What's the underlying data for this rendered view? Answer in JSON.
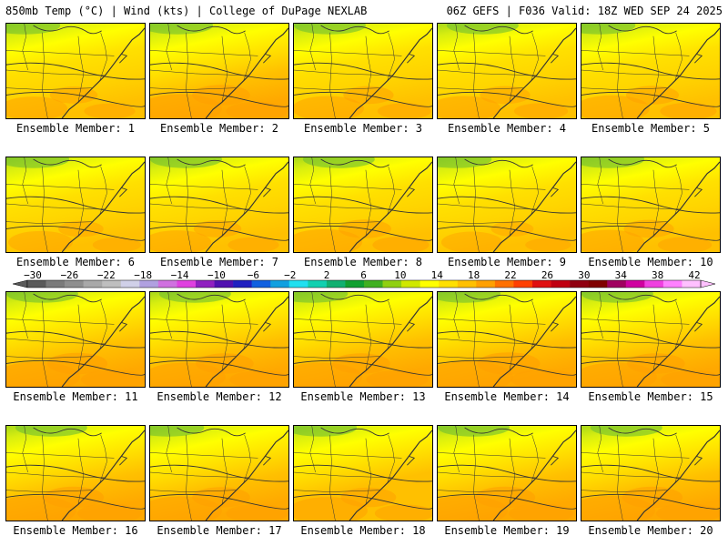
{
  "header": {
    "left": "850mb Temp (°C) | Wind (kts) | College of DuPage NEXLAB",
    "right": "06Z GEFS | F036 Valid: 18Z WED SEP 24 2025"
  },
  "panels": [
    {
      "label": "Ensemble Member: 1",
      "warmth": 0.35
    },
    {
      "label": "Ensemble Member: 2",
      "warmth": 0.55
    },
    {
      "label": "Ensemble Member: 3",
      "warmth": 0.4
    },
    {
      "label": "Ensemble Member: 4",
      "warmth": 0.4
    },
    {
      "label": "Ensemble Member: 5",
      "warmth": 0.45
    },
    {
      "label": "Ensemble Member: 6",
      "warmth": 0.3
    },
    {
      "label": "Ensemble Member: 7",
      "warmth": 0.35
    },
    {
      "label": "Ensemble Member: 8",
      "warmth": 0.45
    },
    {
      "label": "Ensemble Member: 9",
      "warmth": 0.25
    },
    {
      "label": "Ensemble Member: 10",
      "warmth": 0.4
    },
    {
      "label": "Ensemble Member: 11",
      "warmth": 0.6
    },
    {
      "label": "Ensemble Member: 12",
      "warmth": 0.55
    },
    {
      "label": "Ensemble Member: 13",
      "warmth": 0.55
    },
    {
      "label": "Ensemble Member: 14",
      "warmth": 0.65
    },
    {
      "label": "Ensemble Member: 15",
      "warmth": 0.55
    },
    {
      "label": "Ensemble Member: 16",
      "warmth": 0.6
    },
    {
      "label": "Ensemble Member: 17",
      "warmth": 0.55
    },
    {
      "label": "Ensemble Member: 18",
      "warmth": 0.5
    },
    {
      "label": "Ensemble Member: 19",
      "warmth": 0.6
    },
    {
      "label": "Ensemble Member: 20",
      "warmth": 0.6
    }
  ],
  "colorbar": {
    "tick_labels": [
      "−30",
      "−26",
      "−22",
      "−18",
      "−14",
      "−10",
      "−6",
      "−2",
      "2",
      "6",
      "10",
      "14",
      "18",
      "22",
      "26",
      "30",
      "34",
      "38",
      "42"
    ],
    "colors": [
      "#5a5a5a",
      "#7a7a7a",
      "#8e8e8e",
      "#a8a8a8",
      "#bebebe",
      "#d0d0e8",
      "#b0a0e0",
      "#d070e0",
      "#e040e0",
      "#9020c0",
      "#5010b0",
      "#2020c0",
      "#1060e0",
      "#10a0e0",
      "#20e0f0",
      "#10d0b0",
      "#10b070",
      "#10a030",
      "#40b020",
      "#90d010",
      "#d0e800",
      "#ffff00",
      "#ffe000",
      "#ffc000",
      "#ffa000",
      "#ff7000",
      "#ff4000",
      "#e01010",
      "#c00010",
      "#900010",
      "#800000",
      "#a00060",
      "#d000a0",
      "#f040e0",
      "#ff80ff",
      "#ffc0ff"
    ]
  }
}
